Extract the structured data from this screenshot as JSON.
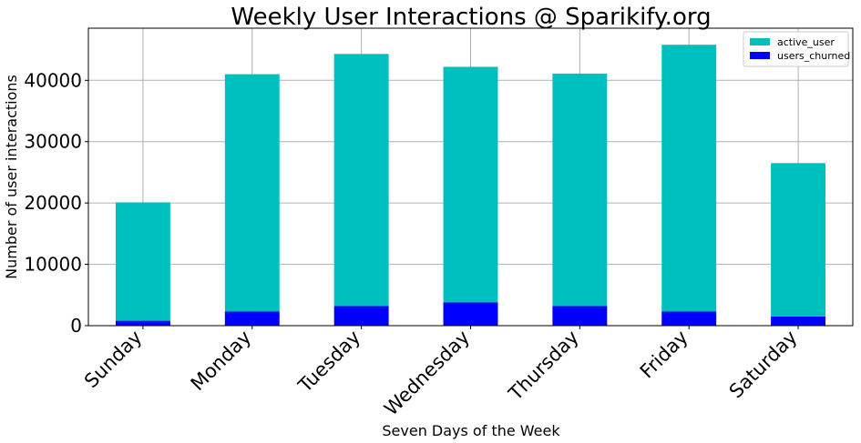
{
  "chart_data": {
    "type": "bar",
    "stacked": true,
    "title": "Weekly User Interactions @ Sparikify.org",
    "xlabel": "Seven Days of the Week",
    "ylabel": "Number of user interactions",
    "categories": [
      "Sunday",
      "Monday",
      "Tuesday",
      "Wednesday",
      "Thursday",
      "Friday",
      "Saturday"
    ],
    "series": [
      {
        "name": "users_churned",
        "color": "#0000ff",
        "values": [
          800,
          2300,
          3200,
          3800,
          3200,
          2300,
          1500
        ]
      },
      {
        "name": "active_user",
        "color": "#00bfbf",
        "values": [
          19300,
          38700,
          41100,
          38400,
          37900,
          43500,
          25000
        ]
      }
    ],
    "ylim": [
      0,
      48500
    ],
    "yticks": [
      0,
      10000,
      20000,
      30000,
      40000
    ],
    "grid": true,
    "legend": "top-right",
    "legend_order": [
      "active_user",
      "users_churned"
    ]
  }
}
